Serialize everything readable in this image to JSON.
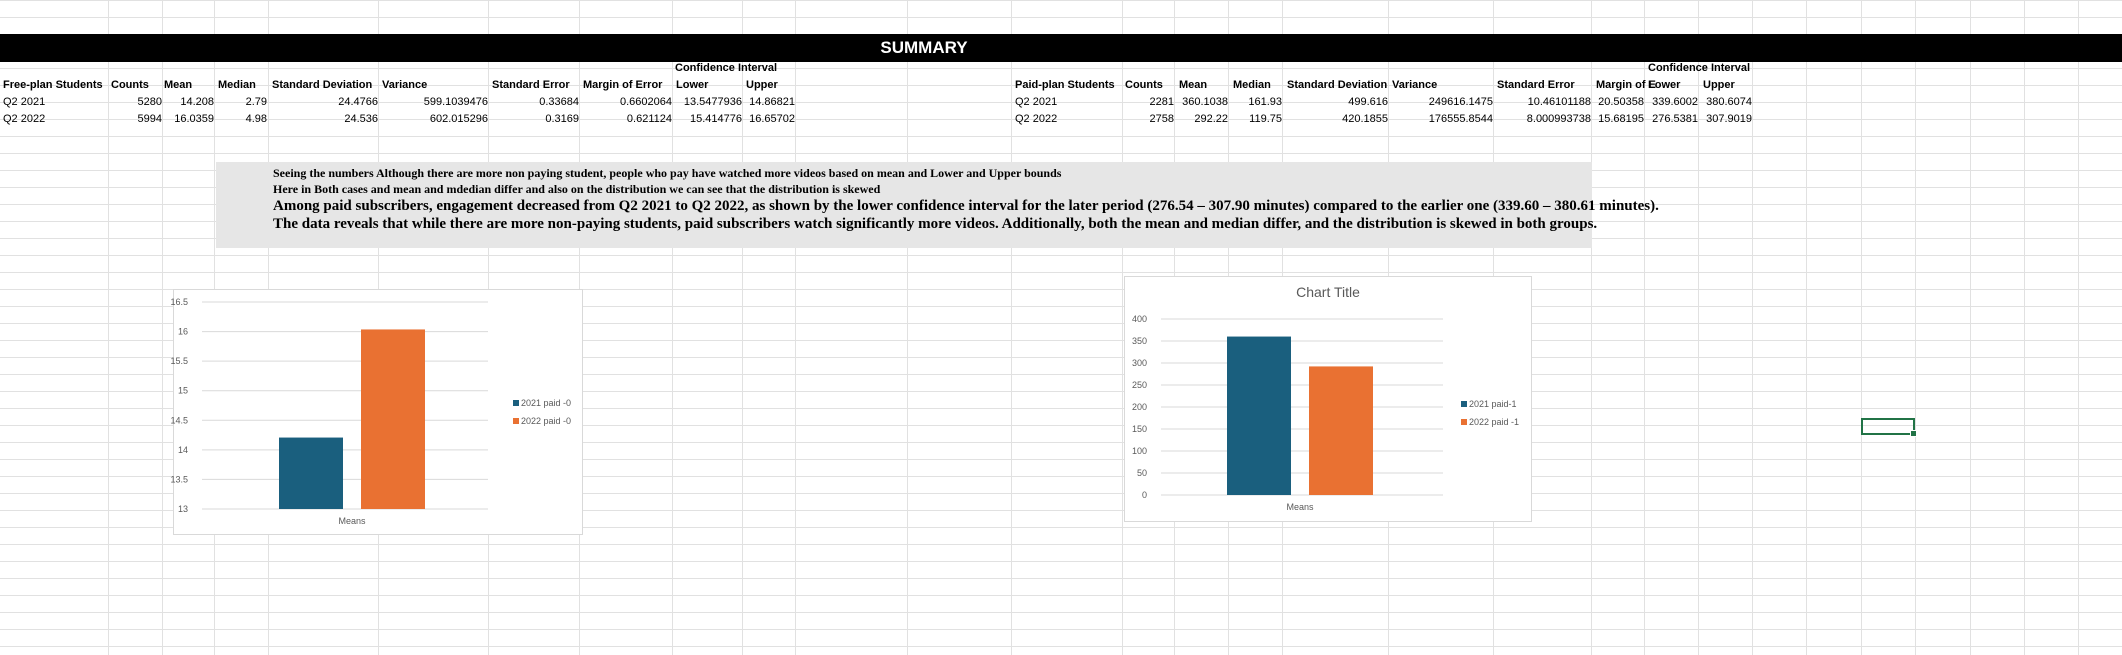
{
  "summary_title": "SUMMARY",
  "free_table": {
    "ci_header": "Confidence Interval",
    "headers": [
      "Free-plan Students",
      "Counts",
      "Mean",
      "Median",
      "Standard Deviation",
      "Variance",
      "Standard Error",
      "Margin of Error",
      "Lower",
      "Upper"
    ],
    "rows": [
      [
        "Q2 2021",
        "5280",
        "14.208",
        "2.79",
        "24.4766",
        "599.1039476",
        "0.33684",
        "0.6602064",
        "13.5477936",
        "14.86821"
      ],
      [
        "Q2 2022",
        "5994",
        "16.0359",
        "4.98",
        "24.536",
        "602.015296",
        "0.3169",
        "0.621124",
        "15.414776",
        "16.65702"
      ]
    ]
  },
  "paid_table": {
    "ci_header": "Confidence Interval",
    "headers": [
      "Paid-plan Students",
      "Counts",
      "Mean",
      "Median",
      "Standard Deviation",
      "Variance",
      "Standard Error",
      "Margin of E",
      "Lower",
      "Upper"
    ],
    "rows": [
      [
        "Q2 2021",
        "2281",
        "360.1038",
        "161.93",
        "499.616",
        "249616.1475",
        "10.46101188",
        "20.50358",
        "339.6002",
        "380.6074"
      ],
      [
        "Q2 2022",
        "2758",
        "292.22",
        "119.75",
        "420.1855",
        "176555.8544",
        "8.000993738",
        "15.68195",
        "276.5381",
        "307.9019"
      ]
    ]
  },
  "notes": [
    "Seeing the numbers Although there are more non paying student, people who pay have watched more videos based on mean and Lower and Upper bounds",
    "Here in Both cases and mean and mdedian differ and also on the distribution we can see that the distribution is skewed",
    "Among paid subscribers, engagement decreased from Q2 2021 to Q2 2022, as shown by the lower confidence interval for the later period (276.54 – 307.90 minutes) compared to the earlier one (339.60 – 380.61 minutes).",
    "The data reveals that while there are more non-paying students, paid subscribers watch significantly more videos. Additionally, both the mean and median differ, and the distribution is skewed in both groups."
  ],
  "colors": {
    "series1": "#1a5f7e",
    "series2": "#e97132",
    "banner": "#000000",
    "selection": "#217346"
  },
  "chart_data": [
    {
      "type": "bar",
      "title": "",
      "categories": [
        "Means"
      ],
      "series": [
        {
          "name": "2021 paid -0",
          "values": [
            14.208
          ]
        },
        {
          "name": "2022 paid -0",
          "values": [
            16.0359
          ]
        }
      ],
      "ylim": [
        13,
        16.5
      ],
      "yticks": [
        "13",
        "13.5",
        "14",
        "14.5",
        "15",
        "15.5",
        "16",
        "16.5"
      ],
      "grid": true,
      "legend": "right"
    },
    {
      "type": "bar",
      "title": "Chart Title",
      "categories": [
        "Means"
      ],
      "series": [
        {
          "name": "2021 paid-1",
          "values": [
            360.1038
          ]
        },
        {
          "name": "2022 paid -1",
          "values": [
            292.22
          ]
        }
      ],
      "ylim": [
        0,
        400
      ],
      "yticks": [
        "0",
        "50",
        "100",
        "150",
        "200",
        "250",
        "300",
        "350",
        "400"
      ],
      "grid": true,
      "legend": "right"
    }
  ]
}
